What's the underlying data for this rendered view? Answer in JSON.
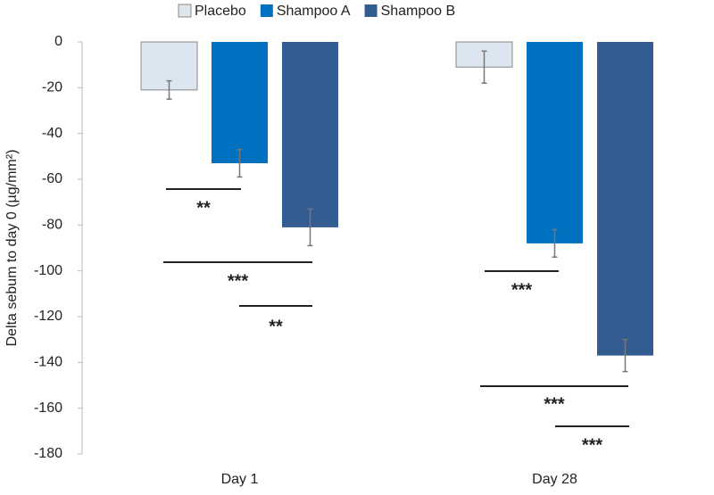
{
  "chart_data": {
    "type": "bar",
    "y_label": "Delta sebum to day 0 (µg/mm²)",
    "categories": [
      "Day 1",
      "Day 28"
    ],
    "series": [
      {
        "name": "Placebo",
        "color": "#dce6f1",
        "values": [
          -21,
          -11
        ],
        "errors": [
          4,
          7
        ]
      },
      {
        "name": "Shampoo A",
        "color": "#0070c0",
        "values": [
          -53,
          -88
        ],
        "errors": [
          6,
          6
        ]
      },
      {
        "name": "Shampoo B",
        "color": "#335c91",
        "values": [
          -81,
          -137
        ],
        "errors": [
          8,
          7
        ]
      }
    ],
    "ylim": [
      -180,
      0
    ],
    "yticks": [
      0,
      -20,
      -40,
      -60,
      -80,
      -100,
      -120,
      -140,
      -160,
      -180
    ],
    "grid": false,
    "legend": "top",
    "annotations": [
      {
        "text": "**"
      },
      {
        "text": "***"
      },
      {
        "text": "**"
      },
      {
        "text": "***"
      },
      {
        "text": "***"
      },
      {
        "text": "***"
      }
    ]
  }
}
